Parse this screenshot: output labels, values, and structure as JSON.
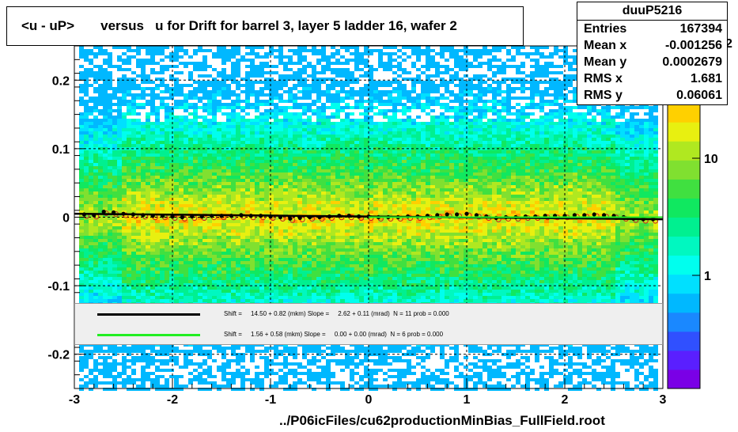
{
  "title": "<u - uP>       versus   u for Drift for barrel 3, layer 5 ladder 16, wafer 2",
  "footer": "../P06icFiles/cu62productionMinBias_FullField.root",
  "stats": {
    "name": "duuP5216",
    "entries_label": "Entries",
    "entries": "167394",
    "mean_x_label": "Mean x",
    "mean_x": "-0.001256",
    "mean_y_label": "Mean y",
    "mean_y": "0.0002679",
    "rms_x_label": "RMS x",
    "rms_x": "1.681",
    "rms_y_label": "RMS y",
    "rms_y": "0.06061"
  },
  "legend": {
    "row1": "Shift =     14.50 + 0.82 (mkm) Slope =     2.62 + 0.11 (mrad)  N = 11 prob = 0.000",
    "row2": "Shift =     1.56 + 0.58 (mkm) Slope =     0.00 + 0.00 (mrad)  N = 6 prob = 0.000",
    "row1_color": "#000000",
    "row2_color": "#22ee22"
  },
  "colors": {
    "palette": [
      "#7a00e6",
      "#5a1fff",
      "#3050ff",
      "#1a88ff",
      "#00b8ff",
      "#00e0ff",
      "#00ffee",
      "#00f8c0",
      "#00f090",
      "#10e860",
      "#40e040",
      "#80e030",
      "#b0e820",
      "#e8f010",
      "#ffd000",
      "#ffa000",
      "#ff6000",
      "#ff2000"
    ]
  },
  "chart_data": {
    "type": "heatmap",
    "xlim": [
      -3,
      3
    ],
    "ylim": [
      -0.25,
      0.25
    ],
    "x_ticks": [
      -3,
      -2,
      -1,
      0,
      1,
      2,
      3
    ],
    "x_tick_labels": [
      "-3",
      "-2",
      "-1",
      "0",
      "1",
      "2",
      "3"
    ],
    "y_ticks": [
      -0.2,
      -0.1,
      0,
      0.1,
      0.2
    ],
    "y_tick_labels": [
      "-0.2",
      "-0.1",
      "0",
      "0.1",
      "0.2"
    ],
    "z_scale": "log",
    "z_ticks": [
      1,
      10
    ],
    "z_tick_labels": [
      "1",
      "10"
    ],
    "z_exponent_label": "2",
    "grid": true,
    "profile_points": {
      "x": [
        -2.9,
        -2.8,
        -2.7,
        -2.6,
        -2.5,
        -2.4,
        -2.3,
        -2.2,
        -2.1,
        -2.0,
        -1.9,
        -1.8,
        -1.7,
        -1.6,
        -1.5,
        -1.4,
        -1.3,
        -1.2,
        -1.1,
        -1.0,
        -0.9,
        -0.8,
        -0.7,
        -0.6,
        -0.5,
        -0.4,
        -0.3,
        -0.2,
        -0.1,
        0.0,
        0.1,
        0.2,
        0.3,
        0.4,
        0.5,
        0.6,
        0.7,
        0.8,
        0.9,
        1.0,
        1.1,
        1.2,
        1.3,
        1.4,
        1.5,
        1.6,
        1.7,
        1.8,
        1.9,
        2.0,
        2.1,
        2.2,
        2.3,
        2.4,
        2.5,
        2.6,
        2.7,
        2.8,
        2.9
      ],
      "y": [
        0.004,
        0.003,
        0.008,
        0.007,
        0.005,
        0.004,
        0.003,
        0.002,
        0.002,
        0.001,
        0.0,
        0.001,
        0.001,
        0.002,
        0.002,
        0.002,
        0.003,
        0.002,
        0.002,
        0.001,
        0.0,
        -0.002,
        -0.001,
        0.0,
        0.0,
        0.001,
        0.002,
        0.002,
        0.001,
        0.001,
        0.0,
        0.0,
        0.0,
        0.001,
        0.001,
        0.002,
        0.003,
        0.004,
        0.004,
        0.005,
        0.003,
        0.001,
        -0.001,
        0.0,
        0.0,
        0.001,
        0.001,
        0.002,
        0.002,
        0.002,
        0.003,
        0.003,
        0.004,
        0.003,
        0.002,
        0.0,
        -0.002,
        -0.003,
        -0.003
      ]
    },
    "fit_black": {
      "x": [
        -3,
        3
      ],
      "y": [
        0.005,
        -0.003
      ]
    },
    "fit_green": {
      "x": [
        0,
        3
      ],
      "y": [
        0.0,
        0.0
      ]
    }
  }
}
